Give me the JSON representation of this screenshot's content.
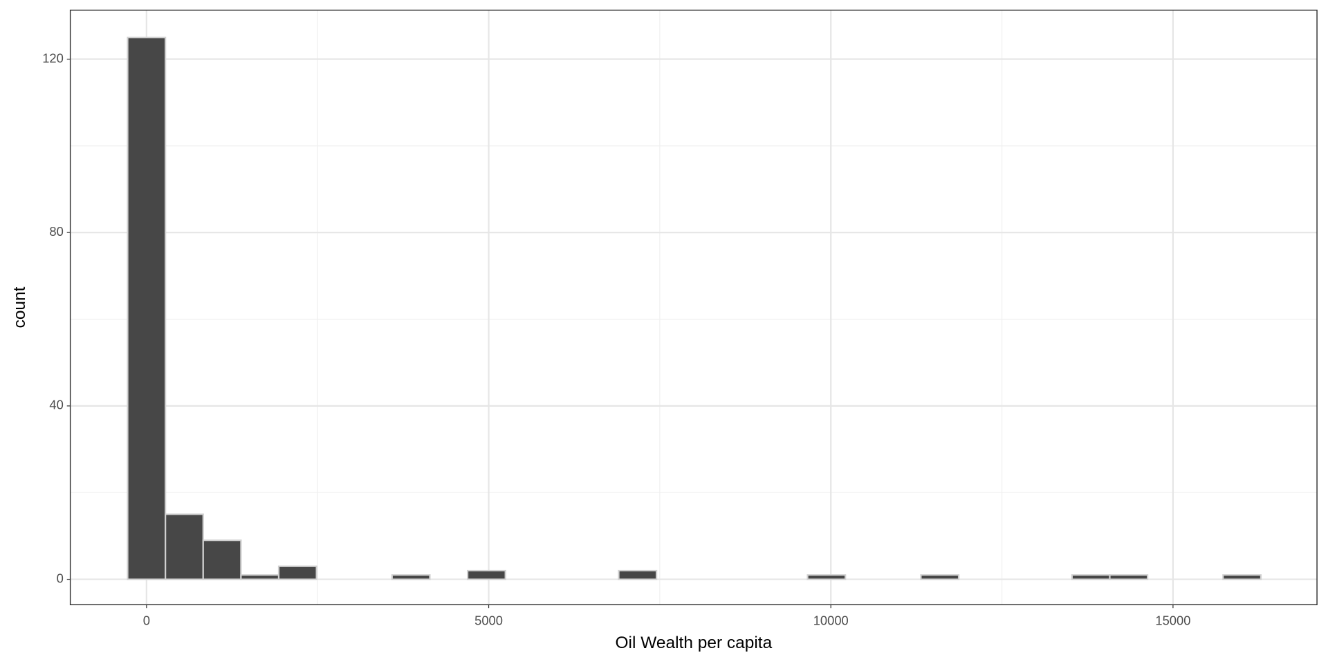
{
  "chart_data": {
    "type": "histogram",
    "x_label": "Oil Wealth per capita",
    "y_label": "count",
    "bins": [
      -276,
      276,
      828,
      1380,
      1932,
      2484,
      3036,
      3588,
      4140,
      4692,
      5244,
      5796,
      6348,
      6900,
      7452,
      8004,
      8556,
      9108,
      9660,
      10212,
      10764,
      11316,
      11868,
      12420,
      12972,
      13524,
      14076,
      14628,
      15180,
      15732,
      16284
    ],
    "values": [
      125,
      15,
      9,
      1,
      3,
      0,
      0,
      1,
      0,
      2,
      0,
      0,
      0,
      2,
      0,
      0,
      0,
      0,
      1,
      0,
      0,
      1,
      0,
      0,
      0,
      1,
      1,
      0,
      0,
      1
    ],
    "color": "#474747",
    "edge_color": "#d0d0d0",
    "xlim": [
      -1114,
      17104
    ],
    "ylim": [
      -5.86,
      131.3
    ],
    "xticks": [
      0,
      5000,
      10000,
      15000
    ],
    "yticks": [
      0,
      40,
      80,
      120
    ],
    "grid": true
  }
}
